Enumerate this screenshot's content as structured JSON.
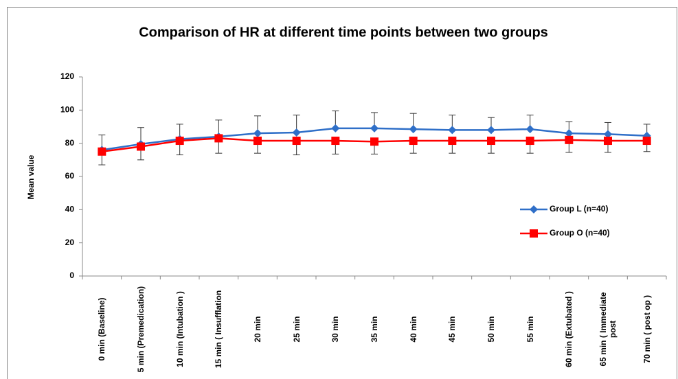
{
  "chart_data": {
    "type": "line",
    "title": "Comparison of HR at different time points between two groups",
    "y_label": "Mean value",
    "categories": [
      "0 min (Baseline)",
      "5 min (Premedication)",
      "10 min (Intubation )",
      "15 min ( Insufflation",
      "20 min",
      "25 min",
      "30 min",
      "35 min",
      "40 min",
      "45 min",
      "50 min",
      "55 min",
      "60 min (Extubated )",
      "65 min ( Immediate post",
      "70 min ( post op )"
    ],
    "series": [
      {
        "name": "Group L (n=40)",
        "color": "#2f6fc8",
        "marker": "diamond",
        "error_bars": "plus",
        "values": [
          76,
          79.5,
          82.5,
          84,
          86,
          86.5,
          89,
          89,
          88.5,
          88,
          88,
          88.5,
          86,
          85.5,
          84.5
        ],
        "errors": [
          9,
          10,
          9,
          10,
          10.5,
          10.5,
          10.5,
          9.5,
          9.5,
          9,
          7.5,
          8.5,
          7,
          7,
          7
        ]
      },
      {
        "name": "Group O (n=40)",
        "color": "#ff0000",
        "marker": "square",
        "error_bars": "minus",
        "values": [
          75,
          78,
          81.5,
          83,
          81.5,
          81.5,
          81.5,
          81,
          81.5,
          81.5,
          81.5,
          81.5,
          82,
          81.5,
          81.5
        ],
        "errors": [
          8,
          8,
          8.5,
          9,
          7.5,
          8.5,
          8,
          7.5,
          7.5,
          7.5,
          7.5,
          7.5,
          7.5,
          7,
          6.5
        ]
      }
    ],
    "ylim": [
      0,
      120
    ],
    "yticks": [
      0,
      20,
      40,
      60,
      80,
      100,
      120
    ],
    "grid": false,
    "legend": "right"
  }
}
